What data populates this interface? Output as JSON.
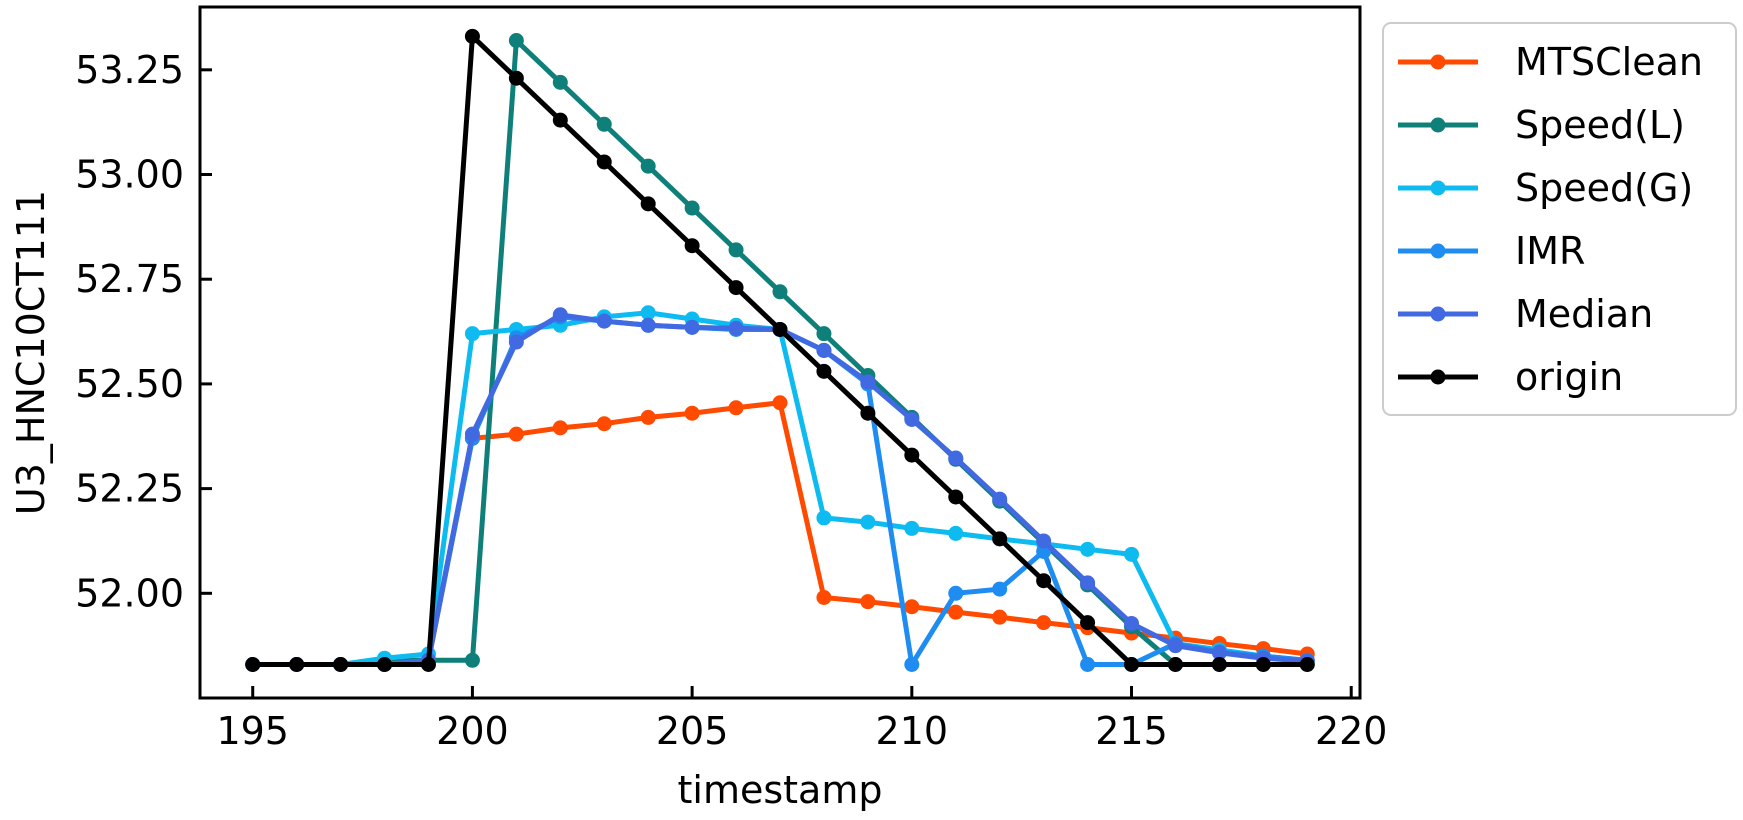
{
  "chart_data": {
    "type": "line",
    "title": "",
    "xlabel": "timestamp",
    "ylabel": "U3_HNC10CT111",
    "xlim": [
      193.8,
      220.2
    ],
    "ylim": [
      51.75,
      53.4
    ],
    "xticks": [
      195,
      200,
      205,
      210,
      215,
      220
    ],
    "yticks": [
      52.0,
      52.25,
      52.5,
      52.75,
      53.0,
      53.25
    ],
    "xtick_labels": [
      "195",
      "200",
      "205",
      "210",
      "215",
      "220"
    ],
    "ytick_labels": [
      "52.00",
      "52.25",
      "52.50",
      "52.75",
      "53.00",
      "53.25"
    ],
    "grid": false,
    "legend_position": "outside-right-top",
    "x": [
      195,
      196,
      197,
      198,
      199,
      200,
      201,
      202,
      203,
      204,
      205,
      206,
      207,
      208,
      209,
      210,
      211,
      212,
      213,
      214,
      215,
      216,
      217,
      218,
      219
    ],
    "series": [
      {
        "name": "MTSClean",
        "color": "#ff4a00",
        "values": [
          51.83,
          51.83,
          51.83,
          51.83,
          51.84,
          52.37,
          52.38,
          52.395,
          52.405,
          52.42,
          52.43,
          52.443,
          52.455,
          51.99,
          51.98,
          51.968,
          51.955,
          51.943,
          51.93,
          51.918,
          51.905,
          51.893,
          51.88,
          51.868,
          51.855
        ]
      },
      {
        "name": "Speed(L)",
        "color": "#0f7f7a",
        "values": [
          51.83,
          51.83,
          51.83,
          51.84,
          51.84,
          51.84,
          53.32,
          53.22,
          53.12,
          53.02,
          52.92,
          52.82,
          52.72,
          52.62,
          52.52,
          52.42,
          52.32,
          52.22,
          52.12,
          52.02,
          51.92,
          51.83,
          51.83,
          51.83,
          51.83
        ]
      },
      {
        "name": "Speed(G)",
        "color": "#0ebbf0",
        "values": [
          51.83,
          51.83,
          51.83,
          51.845,
          51.855,
          52.62,
          52.63,
          52.64,
          52.66,
          52.67,
          52.655,
          52.64,
          52.63,
          52.18,
          52.17,
          52.155,
          52.143,
          52.13,
          52.118,
          52.105,
          52.093,
          51.88,
          51.865,
          51.85,
          51.84
        ]
      },
      {
        "name": "IMR",
        "color": "#1e8cf0",
        "values": [
          51.83,
          51.83,
          51.83,
          51.83,
          51.84,
          52.37,
          52.61,
          52.66,
          52.65,
          52.64,
          52.635,
          52.63,
          52.63,
          52.58,
          52.5,
          51.83,
          52.0,
          52.01,
          52.1,
          51.83,
          51.83,
          51.88,
          51.86,
          51.85,
          51.84
        ]
      },
      {
        "name": "Median",
        "color": "#4169e1",
        "values": [
          51.83,
          51.83,
          51.83,
          51.83,
          51.84,
          52.38,
          52.6,
          52.665,
          52.65,
          52.64,
          52.635,
          52.633,
          52.63,
          52.58,
          52.505,
          52.415,
          52.323,
          52.225,
          52.125,
          52.025,
          51.928,
          51.875,
          51.858,
          51.845,
          51.838
        ]
      },
      {
        "name": "origin",
        "color": "#000000",
        "values": [
          51.83,
          51.83,
          51.83,
          51.83,
          51.83,
          53.33,
          53.23,
          53.13,
          53.03,
          52.93,
          52.83,
          52.73,
          52.63,
          52.53,
          52.43,
          52.33,
          52.23,
          52.13,
          52.03,
          51.93,
          51.83,
          51.83,
          51.83,
          51.83,
          51.83
        ]
      }
    ]
  }
}
